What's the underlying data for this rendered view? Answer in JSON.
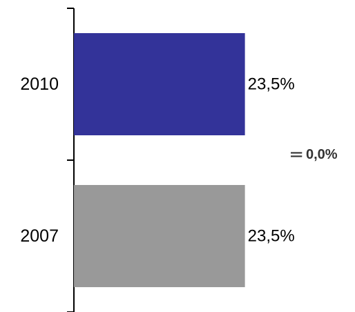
{
  "chart_data": {
    "type": "bar",
    "orientation": "horizontal",
    "categories": [
      "2010",
      "2007"
    ],
    "values": [
      23.5,
      23.5
    ],
    "value_labels": [
      "23,5%",
      "23,5%"
    ],
    "colors": [
      "#333399",
      "#999999"
    ],
    "xlim": [
      0,
      33.5
    ],
    "grid": false,
    "legend": "none",
    "annotation": {
      "symbol": "=",
      "text": "0,0%"
    }
  }
}
